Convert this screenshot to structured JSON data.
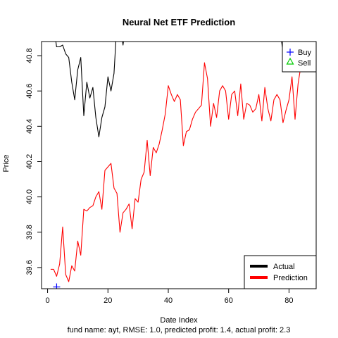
{
  "chart_data": {
    "type": "line",
    "title": "Neural Net ETF Prediction",
    "xlabel": "Date Index",
    "ylabel": "Price",
    "subtitle": "fund name: ayt, RMSE: 1.0, predicted profit: 1.4, actual profit: 2.3",
    "xlim": [
      -2,
      89
    ],
    "ylim": [
      39.48,
      40.88
    ],
    "x_ticks": [
      0,
      20,
      40,
      60,
      80
    ],
    "y_ticks": [
      39.6,
      39.8,
      40.0,
      40.2,
      40.4,
      40.6,
      40.8
    ],
    "x_tick_labels": [
      "0",
      "20",
      "40",
      "60",
      "80"
    ],
    "y_tick_labels": [
      "39.6",
      "39.8",
      "40.0",
      "40.2",
      "40.4",
      "40.6",
      "40.8"
    ],
    "grid": false,
    "series": [
      {
        "name": "Actual",
        "color": "#000000",
        "x": [
          2,
          3,
          4,
          5,
          6,
          7,
          8,
          9,
          10,
          11,
          12,
          13,
          14,
          15,
          16,
          17,
          18,
          19,
          20,
          21,
          22,
          23,
          24,
          25,
          26
        ],
        "y": [
          40.97,
          40.85,
          40.85,
          40.86,
          40.81,
          40.79,
          40.65,
          40.55,
          40.72,
          40.79,
          40.46,
          40.65,
          40.56,
          40.62,
          40.45,
          40.34,
          40.45,
          40.51,
          40.68,
          40.6,
          40.7,
          40.99,
          40.99,
          40.86,
          40.99
        ]
      },
      {
        "name": "Actual",
        "color": "#000000",
        "x": [
          77,
          78,
          79,
          80
        ],
        "y": [
          40.95,
          40.82,
          40.8,
          40.98
        ]
      },
      {
        "name": "Prediction",
        "color": "#ff0000",
        "x": [
          1,
          2,
          3,
          4,
          5,
          6,
          7,
          8,
          9,
          10,
          11,
          12,
          13,
          14,
          15,
          16,
          17,
          18,
          19,
          20,
          21,
          22,
          23,
          24,
          25,
          26,
          27,
          28,
          29,
          30,
          31,
          32,
          33,
          34,
          35,
          36,
          37,
          38,
          39,
          40,
          41,
          42,
          43,
          44,
          45,
          46,
          47,
          48,
          49,
          50,
          51,
          52,
          53,
          54,
          55,
          56,
          57,
          58,
          59,
          60,
          61,
          62,
          63,
          64,
          65,
          66,
          67,
          68,
          69,
          70,
          71,
          72,
          73,
          74,
          75,
          76,
          77,
          78,
          79,
          80,
          81,
          82,
          83,
          84
        ],
        "y": [
          39.59,
          39.59,
          39.55,
          39.62,
          39.83,
          39.56,
          39.52,
          39.61,
          39.58,
          39.75,
          39.67,
          39.93,
          39.92,
          39.94,
          39.95,
          40.0,
          40.03,
          39.93,
          40.15,
          40.17,
          40.19,
          40.05,
          40.02,
          39.8,
          39.91,
          39.93,
          39.96,
          39.82,
          39.99,
          39.97,
          40.1,
          40.14,
          40.32,
          40.12,
          40.28,
          40.25,
          40.3,
          40.38,
          40.47,
          40.63,
          40.58,
          40.54,
          40.58,
          40.55,
          40.29,
          40.37,
          40.38,
          40.44,
          40.48,
          40.5,
          40.52,
          40.76,
          40.67,
          40.4,
          40.53,
          40.45,
          40.6,
          40.63,
          40.6,
          40.44,
          40.58,
          40.6,
          40.46,
          40.64,
          40.44,
          40.53,
          40.52,
          40.48,
          40.5,
          40.58,
          40.43,
          40.62,
          40.5,
          40.43,
          40.55,
          40.58,
          40.55,
          40.42,
          40.49,
          40.55,
          40.68,
          40.44,
          40.64,
          40.75
        ]
      }
    ],
    "markers": [
      {
        "name": "Buy",
        "shape": "plus",
        "color": "#0000ff",
        "x": [
          3
        ],
        "y": [
          39.49
        ]
      },
      {
        "name": "Sell",
        "shape": "triangle",
        "color": "#00cc00",
        "x": [],
        "y": []
      }
    ],
    "legends": [
      {
        "placement": "top-right",
        "entries": [
          {
            "label": "Buy",
            "symbol": "plus",
            "color": "#0000ff"
          },
          {
            "label": "Sell",
            "symbol": "triangle",
            "color": "#00cc00"
          }
        ]
      },
      {
        "placement": "bottom-right",
        "entries": [
          {
            "label": "Actual",
            "symbol": "line",
            "color": "#000000"
          },
          {
            "label": "Prediction",
            "symbol": "line",
            "color": "#ff0000"
          }
        ]
      }
    ]
  }
}
